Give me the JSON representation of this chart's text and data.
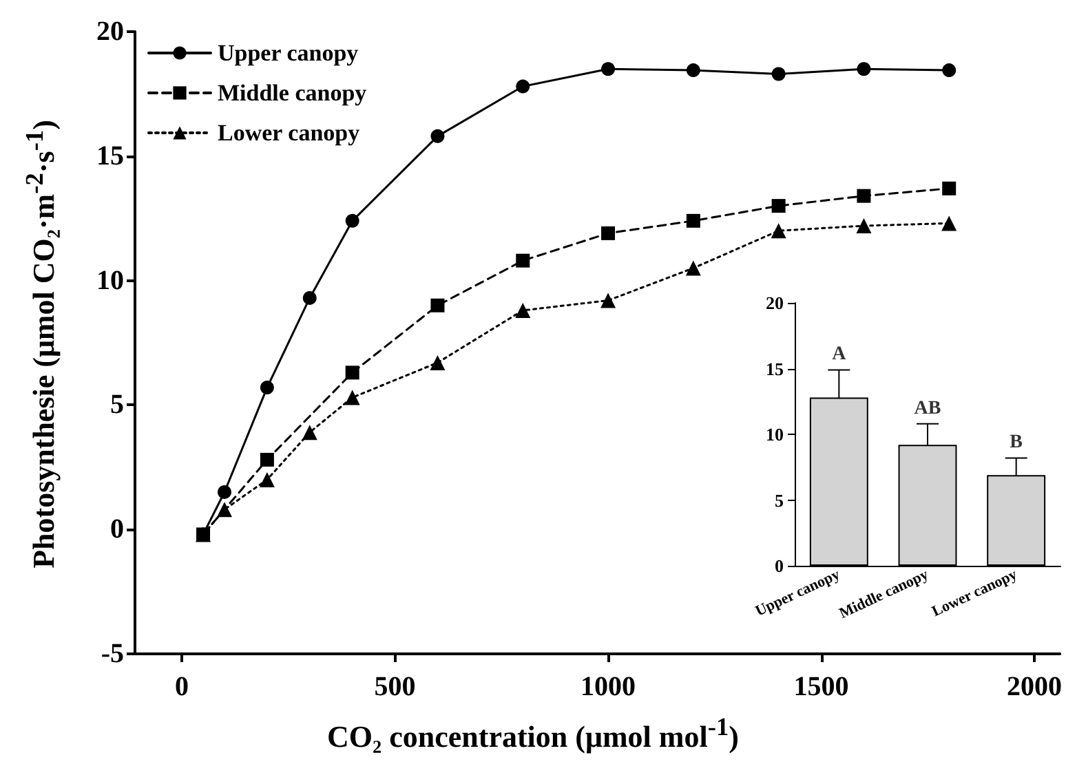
{
  "chart_data": [
    {
      "type": "line",
      "xlabel": "CO₂ concentration (μmol mol$^{-1}$)",
      "ylabel": "Photosynthesie (μmol CO₂·m$^{-2}$·s$^{-1}$)",
      "xlim": [
        -110,
        2060
      ],
      "xticks": [
        0,
        500,
        1000,
        1500,
        2000
      ],
      "ylim": [
        -5,
        20
      ],
      "yticks": [
        -5,
        0,
        5,
        10,
        15,
        20
      ],
      "grid": false,
      "legend": "top left",
      "series": [
        {
          "name": "Upper canopy",
          "color": "#000000",
          "marker": "circle",
          "line_style": "solid",
          "x": [
            50,
            100,
            200,
            300,
            400,
            600,
            800,
            1000,
            1200,
            1400,
            1600,
            1800
          ],
          "values": [
            -0.2,
            1.5,
            5.7,
            9.3,
            12.4,
            15.8,
            17.8,
            18.5,
            18.45,
            18.3,
            18.5,
            18.45
          ]
        },
        {
          "name": "Middle canopy",
          "color": "#000000",
          "marker": "square",
          "line_style": "dashed",
          "x": [
            50,
            200,
            400,
            600,
            800,
            1000,
            1200,
            1400,
            1600,
            1800
          ],
          "values": [
            -0.2,
            2.8,
            6.3,
            9.0,
            10.8,
            11.9,
            12.4,
            13.0,
            13.4,
            13.7
          ]
        },
        {
          "name": "Lower canopy",
          "color": "#000000",
          "marker": "triangle",
          "line_style": "dotted",
          "x": [
            50,
            100,
            200,
            300,
            400,
            600,
            800,
            1000,
            1200,
            1400,
            1600,
            1800
          ],
          "values": [
            -0.2,
            0.8,
            2.0,
            3.9,
            5.3,
            6.7,
            8.8,
            9.2,
            10.5,
            12.0,
            12.2,
            12.3
          ]
        }
      ]
    },
    {
      "type": "bar",
      "categories": [
        "Upper canopy",
        "Middle canopy",
        "Lower canopy"
      ],
      "values": [
        12.8,
        9.2,
        6.9
      ],
      "errors": [
        2.1,
        1.6,
        1.3
      ],
      "color": "#d3d3d3",
      "ylim": [
        0,
        20
      ],
      "yticks": [
        0,
        5,
        10,
        15,
        20
      ],
      "grid": false,
      "annotations": [
        "A",
        "AB",
        "B"
      ]
    }
  ]
}
